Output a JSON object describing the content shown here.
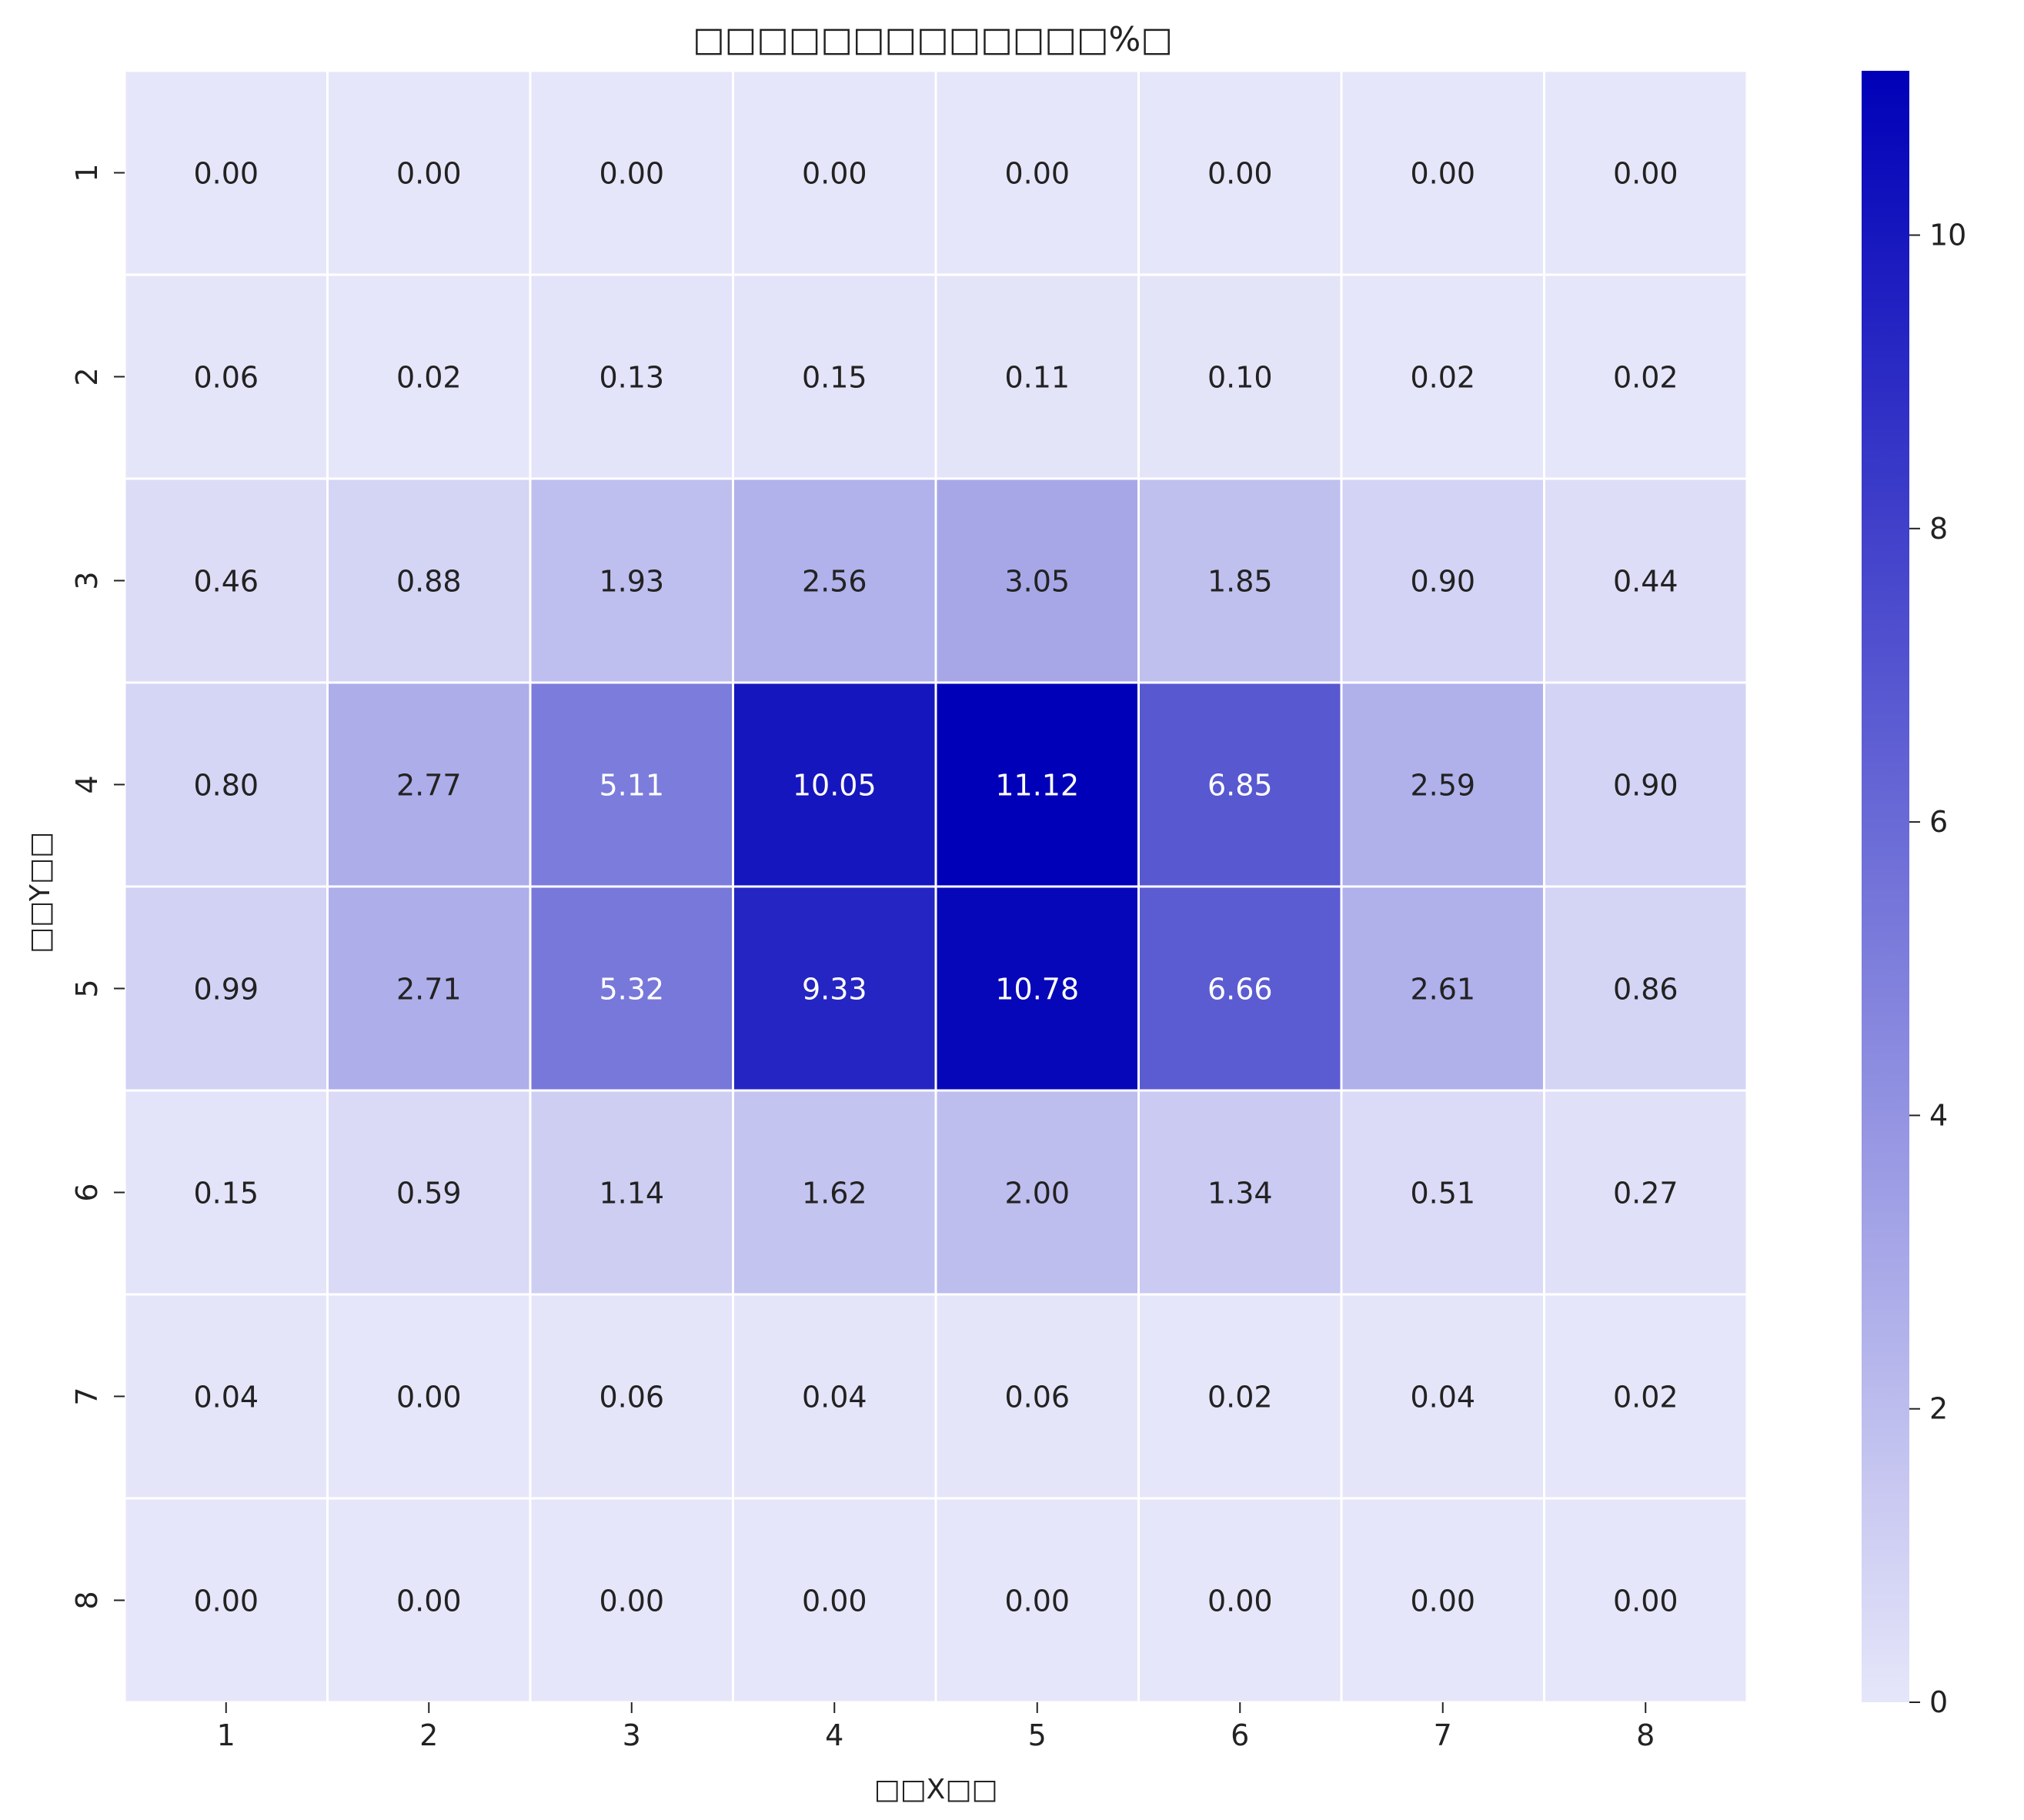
{
  "chart_data": {
    "type": "heatmap",
    "title": "□□□□□□□□□□□□□%□",
    "xlabel": "□□X□□",
    "ylabel": "□□Y□□",
    "x_categories": [
      "1",
      "2",
      "3",
      "4",
      "5",
      "6",
      "7",
      "8"
    ],
    "y_categories": [
      "1",
      "2",
      "3",
      "4",
      "5",
      "6",
      "7",
      "8"
    ],
    "values": [
      [
        0.0,
        0.0,
        0.0,
        0.0,
        0.0,
        0.0,
        0.0,
        0.0
      ],
      [
        0.06,
        0.02,
        0.13,
        0.15,
        0.11,
        0.1,
        0.02,
        0.02
      ],
      [
        0.46,
        0.88,
        1.93,
        2.56,
        3.05,
        1.85,
        0.9,
        0.44
      ],
      [
        0.8,
        2.77,
        5.11,
        10.05,
        11.12,
        6.85,
        2.59,
        0.9
      ],
      [
        0.99,
        2.71,
        5.32,
        9.33,
        10.78,
        6.66,
        2.61,
        0.86
      ],
      [
        0.15,
        0.59,
        1.14,
        1.62,
        2.0,
        1.34,
        0.51,
        0.27
      ],
      [
        0.04,
        0.0,
        0.06,
        0.04,
        0.06,
        0.02,
        0.04,
        0.02
      ],
      [
        0.0,
        0.0,
        0.0,
        0.0,
        0.0,
        0.0,
        0.0,
        0.0
      ]
    ],
    "value_format": "0.00",
    "colorbar": {
      "min": 0,
      "max": 11.12,
      "ticks": [
        0,
        2,
        4,
        6,
        8,
        10
      ],
      "colors": [
        "#e6e6fa",
        "#0000b8"
      ]
    },
    "gridlines": "white",
    "legend": "colorbar-right"
  }
}
